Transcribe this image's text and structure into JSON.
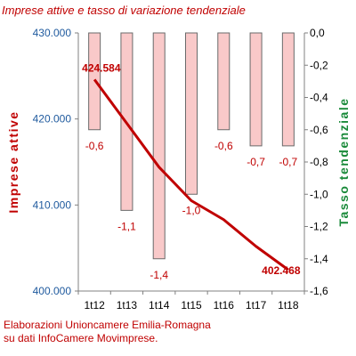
{
  "title": "Imprese attive e tasso di variazione tendenziale",
  "credit": {
    "line1": "Elaborazioni Unioncamere Emilia-Romagna",
    "line2": "su dati InfoCamere Movimprese."
  },
  "colors": {
    "bar_fill": "#f9c9c9",
    "bar_stroke": "#6a6a6a",
    "line": "#c00000",
    "left_ticks": "#1f5a9e",
    "left_label": "#c00000",
    "right_label": "#1a8a3a"
  },
  "chart_data": {
    "type": "bar",
    "categories": [
      "1t12",
      "1t13",
      "1t14",
      "1t15",
      "1t16",
      "1t17",
      "1t18"
    ],
    "ylabel": "Imprese attive",
    "y2label": "Tasso tendenziale",
    "ylim": [
      400000,
      430000
    ],
    "yticks": [
      "400.000",
      "410.000",
      "420.000",
      "430.000"
    ],
    "y2lim": [
      -1.6,
      0.0
    ],
    "y2ticks": [
      "0,0",
      "-0,2",
      "-0,4",
      "-0,6",
      "-0,8",
      "-1,0",
      "-1,2",
      "-1,4",
      "-1,6"
    ],
    "grid": false,
    "series": [
      {
        "name": "Tasso tendenziale",
        "kind": "bar",
        "axis": "right",
        "values": [
          -0.6,
          -1.1,
          -1.4,
          -1.0,
          -0.6,
          -0.7,
          -0.7
        ],
        "labels": [
          "-0,6",
          "-1,1",
          "-1,4",
          "-1,0",
          "-0,6",
          "-0,7",
          "-0,7"
        ]
      },
      {
        "name": "Imprese attive",
        "kind": "line",
        "axis": "left",
        "values": [
          424584,
          419500,
          414400,
          410500,
          408300,
          405200,
          402468
        ],
        "point_labels": [
          {
            "index": 0,
            "text": "424.584"
          },
          {
            "index": 6,
            "text": "402.468"
          }
        ]
      }
    ]
  }
}
